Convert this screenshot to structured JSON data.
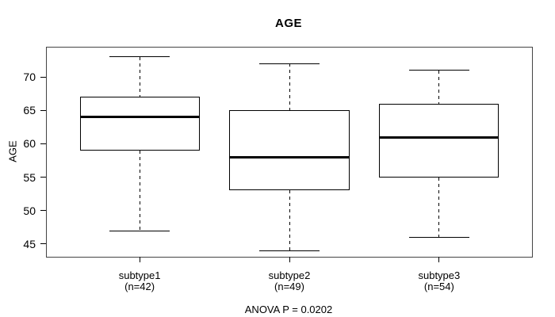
{
  "chart_data": {
    "type": "boxplot",
    "title": "AGE",
    "ylabel": "AGE",
    "xlabel": "",
    "annotation": "ANOVA P = 0.0202",
    "yticks": [
      45,
      50,
      55,
      60,
      65,
      70
    ],
    "ylim": [
      43.1,
      74.4
    ],
    "xlim": [
      0.38,
      3.62
    ],
    "box_width": 0.8,
    "cap_width": 0.4,
    "grid": false,
    "legend": false,
    "line_color": "#000000",
    "box_fill": "#ffffff",
    "plot_border_color": "#444444",
    "series": [
      {
        "label": "subtype1",
        "sublabel": "(n=42)",
        "n": 42,
        "position": 1,
        "whisker_low": 47,
        "q1": 59,
        "median": 64,
        "q3": 67,
        "whisker_high": 73
      },
      {
        "label": "subtype2",
        "sublabel": "(n=49)",
        "n": 49,
        "position": 2,
        "whisker_low": 44,
        "q1": 53,
        "median": 58,
        "q3": 65,
        "whisker_high": 72
      },
      {
        "label": "subtype3",
        "sublabel": "(n=54)",
        "n": 54,
        "position": 3,
        "whisker_low": 46,
        "q1": 55,
        "median": 61,
        "q3": 66,
        "whisker_high": 71
      }
    ]
  }
}
